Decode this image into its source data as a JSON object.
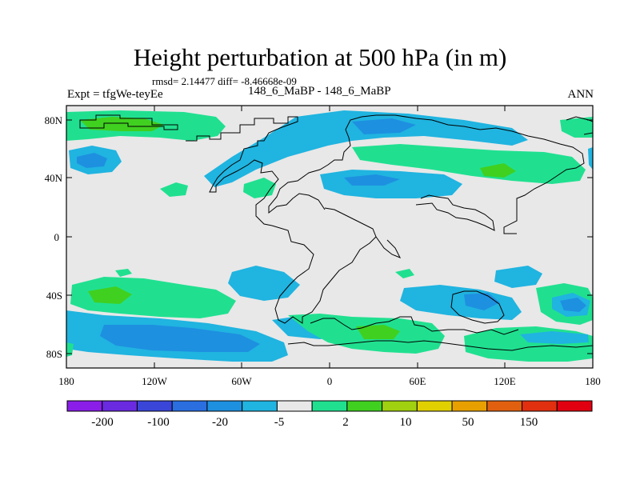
{
  "title": "Height perturbation at 500 hPa (in m)",
  "stats": "rmsd= 2.14477  diff= -8.46668e-09",
  "experiment": "Expt = tfgWe-teyEe",
  "subtitle": "148_6_MaBP - 148_6_MaBP",
  "season": "ANN",
  "lat_labels": [
    "80N",
    "40N",
    "0",
    "40S",
    "80S"
  ],
  "lon_labels": [
    "180",
    "120W",
    "60W",
    "0",
    "60E",
    "120E",
    "180"
  ],
  "colorbar": {
    "labels": [
      "-200",
      "-100",
      "-20",
      "-5",
      "2",
      "10",
      "50",
      "150"
    ],
    "colors": [
      "#8a1ee8",
      "#6a2ae0",
      "#3a46d8",
      "#2a6ee0",
      "#1e90e0",
      "#20b4e0",
      "#e8e8e8",
      "#20e090",
      "#40d020",
      "#a0d010",
      "#e0d000",
      "#e8a000",
      "#e06010",
      "#e03010",
      "#e00010"
    ]
  },
  "field_colors": {
    "background": "#e8e8e8",
    "negative_light": "#20b4e0",
    "negative_mid": "#1e90e0",
    "positive_light": "#20e090",
    "positive_mid": "#40d020"
  }
}
